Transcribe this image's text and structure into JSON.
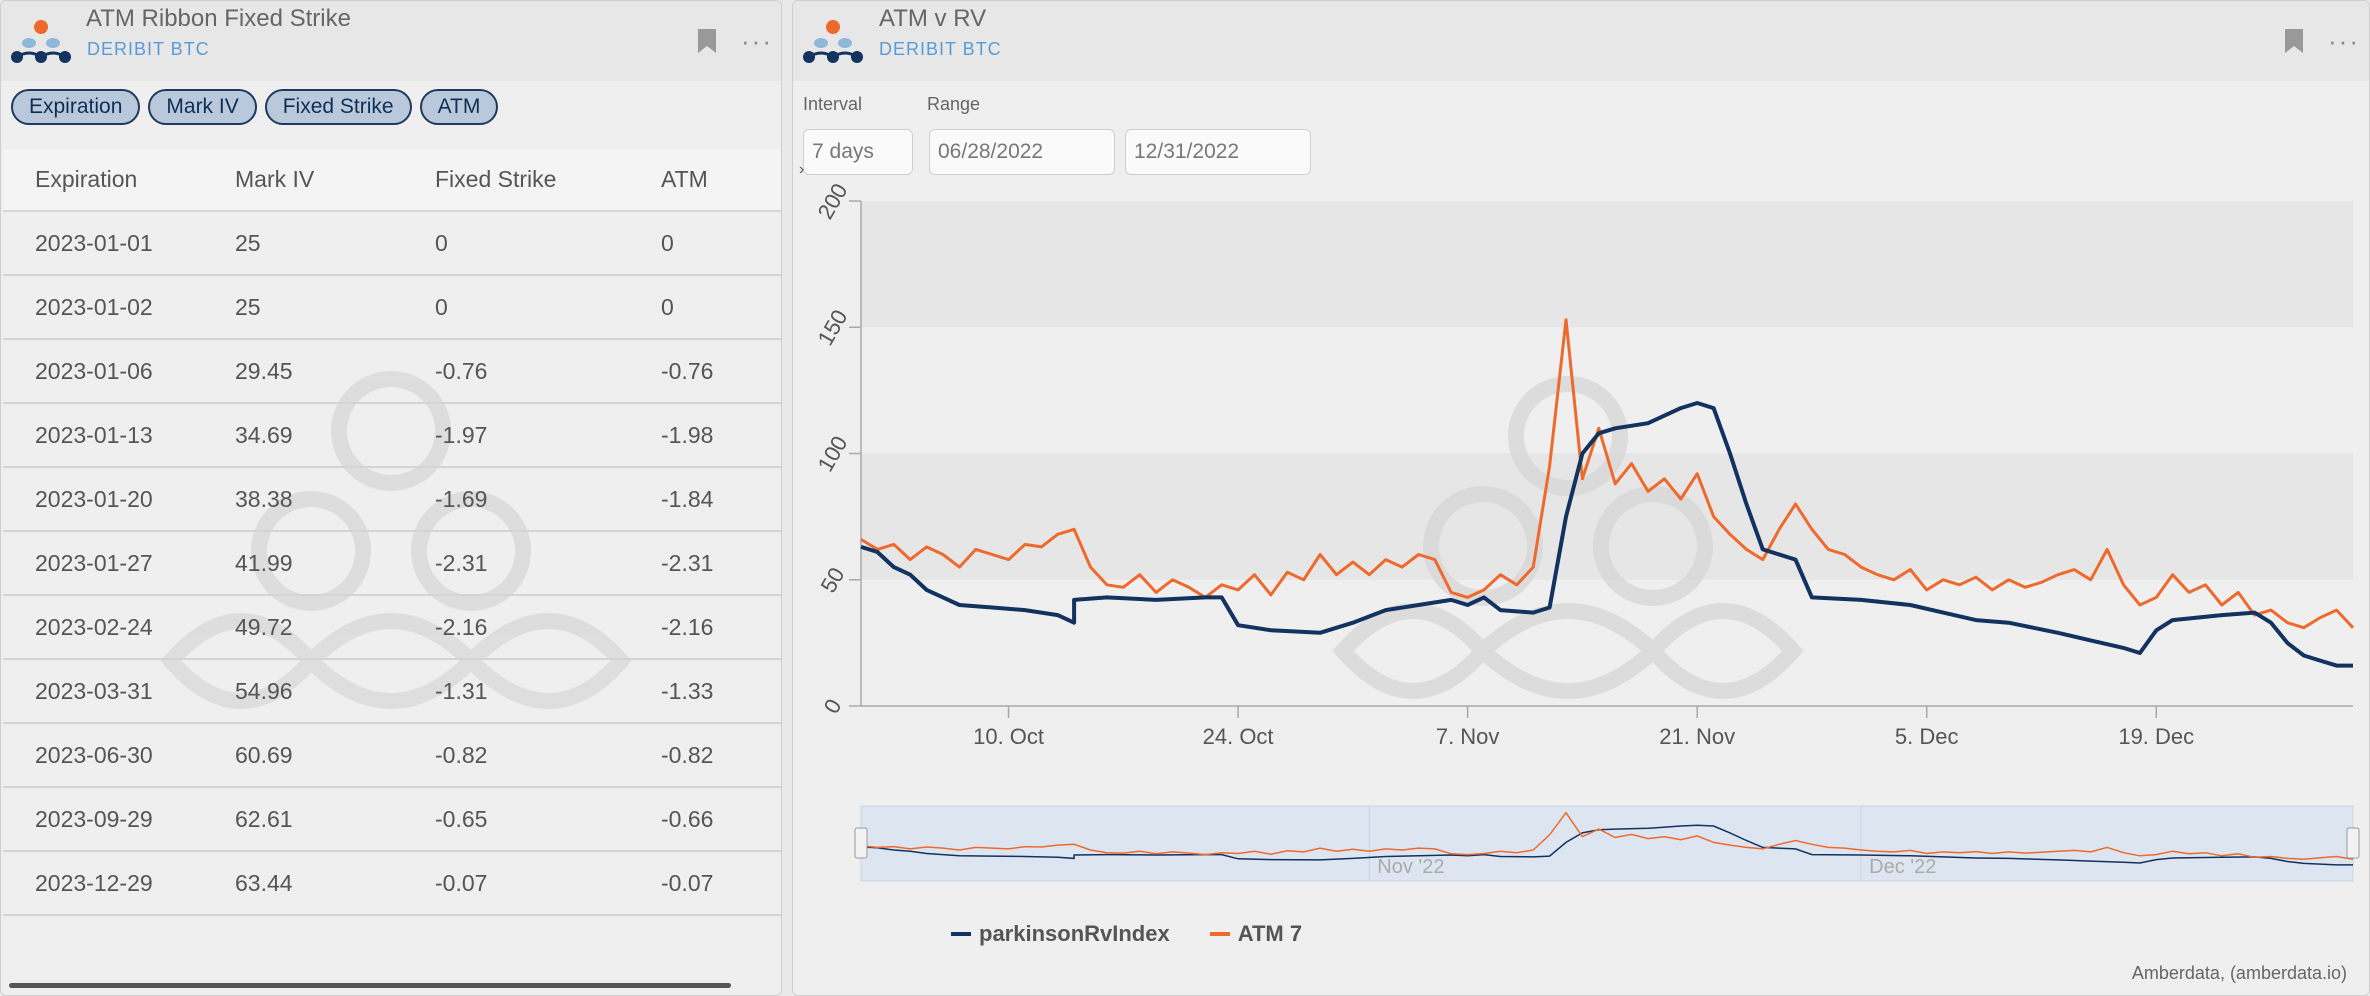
{
  "left_panel": {
    "title": "ATM Ribbon Fixed Strike",
    "subtitle": "DERIBIT BTC",
    "more": "···",
    "chips": [
      "Expiration",
      "Mark IV",
      "Fixed Strike",
      "ATM"
    ],
    "table": {
      "headers": [
        "Expiration",
        "Mark IV",
        "Fixed Strike",
        "ATM"
      ],
      "rows": [
        [
          "2023-01-01",
          "25",
          "0",
          "0"
        ],
        [
          "2023-01-02",
          "25",
          "0",
          "0"
        ],
        [
          "2023-01-06",
          "29.45",
          "-0.76",
          "-0.76"
        ],
        [
          "2023-01-13",
          "34.69",
          "-1.97",
          "-1.98"
        ],
        [
          "2023-01-20",
          "38.38",
          "-1.69",
          "-1.84"
        ],
        [
          "2023-01-27",
          "41.99",
          "-2.31",
          "-2.31"
        ],
        [
          "2023-02-24",
          "49.72",
          "-2.16",
          "-2.16"
        ],
        [
          "2023-03-31",
          "54.96",
          "-1.31",
          "-1.33"
        ],
        [
          "2023-06-30",
          "60.69",
          "-0.82",
          "-0.82"
        ],
        [
          "2023-09-29",
          "62.61",
          "-0.65",
          "-0.66"
        ],
        [
          "2023-12-29",
          "63.44",
          "-0.07",
          "-0.07"
        ]
      ]
    }
  },
  "right_panel": {
    "title": "ATM v RV",
    "subtitle": "DERIBIT BTC",
    "more": "···",
    "interval_label": "Interval",
    "interval_value": "7 days",
    "range_label": "Range",
    "range_start": "06/28/2022",
    "range_end": "12/31/2022",
    "credit": "Amberdata, (amberdata.io)",
    "navigator_labels": [
      "Nov '22",
      "Dec '22"
    ]
  },
  "colors": {
    "rv": "#12325f",
    "atm": "#ee6a2c",
    "accent": "#5b9bd5"
  },
  "chart_data": {
    "type": "line",
    "title": "",
    "xlabel": "",
    "ylabel": "",
    "ylim": [
      0,
      200
    ],
    "yticks": [
      0,
      50,
      100,
      150,
      200
    ],
    "xtick_labels": [
      "10. Oct",
      "24. Oct",
      "7. Nov",
      "21. Nov",
      "5. Dec",
      "19. Dec"
    ],
    "xtick_dates": [
      "2022-10-10",
      "2022-10-24",
      "2022-11-07",
      "2022-11-21",
      "2022-12-05",
      "2022-12-19"
    ],
    "xlim": [
      "2022-10-01",
      "2022-12-31"
    ],
    "series": [
      {
        "name": "parkinsonRvIndex",
        "color_key": "rv",
        "points": [
          [
            "2022-10-01",
            63
          ],
          [
            "2022-10-02",
            61
          ],
          [
            "2022-10-03",
            55
          ],
          [
            "2022-10-04",
            52
          ],
          [
            "2022-10-05",
            46
          ],
          [
            "2022-10-06",
            43
          ],
          [
            "2022-10-07",
            40
          ],
          [
            "2022-10-09",
            39
          ],
          [
            "2022-10-11",
            38
          ],
          [
            "2022-10-13",
            36
          ],
          [
            "2022-10-14",
            33
          ],
          [
            "2022-10-14",
            42
          ],
          [
            "2022-10-16",
            43
          ],
          [
            "2022-10-19",
            42
          ],
          [
            "2022-10-22",
            43
          ],
          [
            "2022-10-23",
            43
          ],
          [
            "2022-10-24",
            32
          ],
          [
            "2022-10-26",
            30
          ],
          [
            "2022-10-29",
            29
          ],
          [
            "2022-10-31",
            33
          ],
          [
            "2022-11-02",
            38
          ],
          [
            "2022-11-04",
            40
          ],
          [
            "2022-11-06",
            42
          ],
          [
            "2022-11-07",
            40
          ],
          [
            "2022-11-08",
            43
          ],
          [
            "2022-11-09",
            38
          ],
          [
            "2022-11-11",
            37
          ],
          [
            "2022-11-12",
            39
          ],
          [
            "2022-11-13",
            75
          ],
          [
            "2022-11-14",
            100
          ],
          [
            "2022-11-15",
            108
          ],
          [
            "2022-11-16",
            110
          ],
          [
            "2022-11-18",
            112
          ],
          [
            "2022-11-20",
            118
          ],
          [
            "2022-11-21",
            120
          ],
          [
            "2022-11-22",
            118
          ],
          [
            "2022-11-23",
            100
          ],
          [
            "2022-11-24",
            80
          ],
          [
            "2022-11-25",
            62
          ],
          [
            "2022-11-27",
            58
          ],
          [
            "2022-11-28",
            43
          ],
          [
            "2022-12-01",
            42
          ],
          [
            "2022-12-04",
            40
          ],
          [
            "2022-12-06",
            37
          ],
          [
            "2022-12-08",
            34
          ],
          [
            "2022-12-10",
            33
          ],
          [
            "2022-12-13",
            29
          ],
          [
            "2022-12-15",
            26
          ],
          [
            "2022-12-17",
            23
          ],
          [
            "2022-12-18",
            21
          ],
          [
            "2022-12-19",
            30
          ],
          [
            "2022-12-20",
            34
          ],
          [
            "2022-12-23",
            36
          ],
          [
            "2022-12-25",
            37
          ],
          [
            "2022-12-26",
            33
          ],
          [
            "2022-12-27",
            25
          ],
          [
            "2022-12-28",
            20
          ],
          [
            "2022-12-29",
            18
          ],
          [
            "2022-12-30",
            16
          ],
          [
            "2022-12-31",
            16
          ]
        ]
      },
      {
        "name": "ATM 7",
        "color_key": "atm",
        "points": [
          [
            "2022-10-01",
            66
          ],
          [
            "2022-10-02",
            62
          ],
          [
            "2022-10-03",
            64
          ],
          [
            "2022-10-04",
            58
          ],
          [
            "2022-10-05",
            63
          ],
          [
            "2022-10-06",
            60
          ],
          [
            "2022-10-07",
            55
          ],
          [
            "2022-10-08",
            62
          ],
          [
            "2022-10-09",
            60
          ],
          [
            "2022-10-10",
            58
          ],
          [
            "2022-10-11",
            64
          ],
          [
            "2022-10-12",
            63
          ],
          [
            "2022-10-13",
            68
          ],
          [
            "2022-10-14",
            70
          ],
          [
            "2022-10-15",
            55
          ],
          [
            "2022-10-16",
            48
          ],
          [
            "2022-10-17",
            47
          ],
          [
            "2022-10-18",
            52
          ],
          [
            "2022-10-19",
            45
          ],
          [
            "2022-10-20",
            50
          ],
          [
            "2022-10-21",
            47
          ],
          [
            "2022-10-22",
            43
          ],
          [
            "2022-10-23",
            48
          ],
          [
            "2022-10-24",
            46
          ],
          [
            "2022-10-25",
            52
          ],
          [
            "2022-10-26",
            44
          ],
          [
            "2022-10-27",
            53
          ],
          [
            "2022-10-28",
            50
          ],
          [
            "2022-10-29",
            60
          ],
          [
            "2022-10-30",
            52
          ],
          [
            "2022-10-31",
            57
          ],
          [
            "2022-11-01",
            52
          ],
          [
            "2022-11-02",
            58
          ],
          [
            "2022-11-03",
            55
          ],
          [
            "2022-11-04",
            60
          ],
          [
            "2022-11-05",
            58
          ],
          [
            "2022-11-06",
            45
          ],
          [
            "2022-11-07",
            43
          ],
          [
            "2022-11-08",
            46
          ],
          [
            "2022-11-09",
            52
          ],
          [
            "2022-11-10",
            48
          ],
          [
            "2022-11-11",
            55
          ],
          [
            "2022-11-12",
            95
          ],
          [
            "2022-11-13",
            153
          ],
          [
            "2022-11-14",
            90
          ],
          [
            "2022-11-15",
            110
          ],
          [
            "2022-11-16",
            88
          ],
          [
            "2022-11-17",
            96
          ],
          [
            "2022-11-18",
            85
          ],
          [
            "2022-11-19",
            90
          ],
          [
            "2022-11-20",
            82
          ],
          [
            "2022-11-21",
            92
          ],
          [
            "2022-11-22",
            75
          ],
          [
            "2022-11-23",
            68
          ],
          [
            "2022-11-24",
            62
          ],
          [
            "2022-11-25",
            58
          ],
          [
            "2022-11-26",
            70
          ],
          [
            "2022-11-27",
            80
          ],
          [
            "2022-11-28",
            70
          ],
          [
            "2022-11-29",
            62
          ],
          [
            "2022-11-30",
            60
          ],
          [
            "2022-12-01",
            55
          ],
          [
            "2022-12-02",
            52
          ],
          [
            "2022-12-03",
            50
          ],
          [
            "2022-12-04",
            54
          ],
          [
            "2022-12-05",
            46
          ],
          [
            "2022-12-06",
            50
          ],
          [
            "2022-12-07",
            48
          ],
          [
            "2022-12-08",
            51
          ],
          [
            "2022-12-09",
            46
          ],
          [
            "2022-12-10",
            50
          ],
          [
            "2022-12-11",
            47
          ],
          [
            "2022-12-12",
            49
          ],
          [
            "2022-12-13",
            52
          ],
          [
            "2022-12-14",
            54
          ],
          [
            "2022-12-15",
            50
          ],
          [
            "2022-12-16",
            62
          ],
          [
            "2022-12-17",
            48
          ],
          [
            "2022-12-18",
            40
          ],
          [
            "2022-12-19",
            43
          ],
          [
            "2022-12-20",
            52
          ],
          [
            "2022-12-21",
            45
          ],
          [
            "2022-12-22",
            48
          ],
          [
            "2022-12-23",
            40
          ],
          [
            "2022-12-24",
            45
          ],
          [
            "2022-12-25",
            36
          ],
          [
            "2022-12-26",
            38
          ],
          [
            "2022-12-27",
            33
          ],
          [
            "2022-12-28",
            31
          ],
          [
            "2022-12-29",
            35
          ],
          [
            "2022-12-30",
            38
          ],
          [
            "2022-12-31",
            31
          ]
        ]
      }
    ],
    "legend": [
      "parkinsonRvIndex",
      "ATM 7"
    ],
    "legend_position": "bottom-left",
    "plot_bands": [
      [
        50,
        100
      ],
      [
        150,
        200
      ]
    ]
  }
}
